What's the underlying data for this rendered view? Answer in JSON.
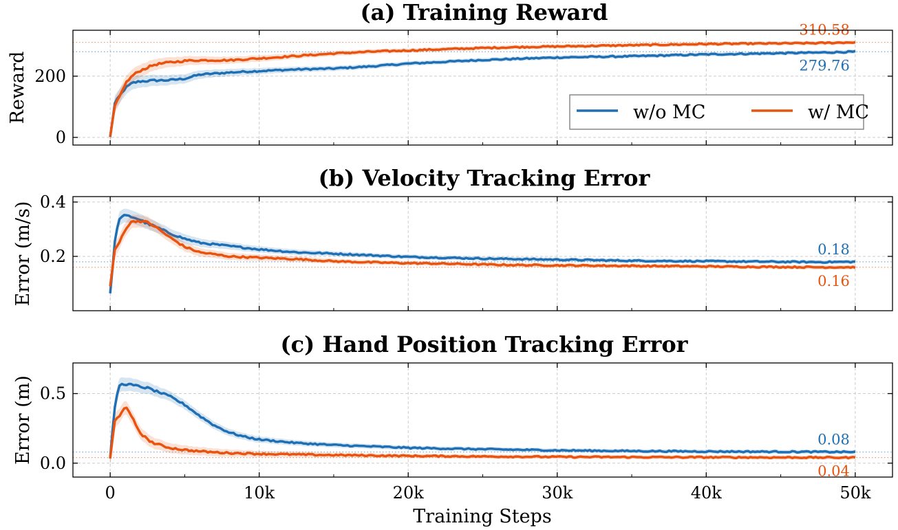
{
  "figure": {
    "xlabel": "Training Steps",
    "x_ticks": [
      0,
      10000,
      20000,
      30000,
      40000,
      50000
    ],
    "x_tick_labels": [
      "0",
      "10k",
      "20k",
      "30k",
      "40k",
      "50k"
    ],
    "legend": {
      "placement": "lower-right of panel (a)",
      "entries": [
        "w/o MC",
        "w/ MC"
      ]
    },
    "colors": {
      "wo_mc": "#1f6fb4",
      "w_mc": "#e8530f"
    }
  },
  "chart_data": [
    {
      "type": "line",
      "title": "(a) Training Reward",
      "ylabel": "Reward",
      "xlim": [
        -2500,
        52500
      ],
      "ylim": [
        -25,
        350
      ],
      "y_ticks": [
        0,
        200
      ],
      "y_tick_labels": [
        "0",
        "200"
      ],
      "grid": true,
      "x": [
        0,
        300,
        700,
        1000,
        1500,
        2000,
        3000,
        4000,
        5000,
        6000,
        8000,
        10000,
        12500,
        15000,
        17500,
        20000,
        22500,
        25000,
        27500,
        30000,
        32500,
        35000,
        37500,
        40000,
        42500,
        45000,
        47500,
        50000
      ],
      "series": [
        {
          "name": "w/o MC",
          "values": [
            0,
            110,
            140,
            160,
            178,
            183,
            186,
            187,
            192,
            205,
            212,
            217,
            222,
            225,
            232,
            241,
            247,
            253,
            257,
            261,
            263,
            265,
            268,
            271,
            273,
            275,
            277,
            279.76
          ],
          "final_label": "279.76"
        },
        {
          "name": "w/ MC",
          "values": [
            0,
            100,
            140,
            175,
            202,
            218,
            238,
            245,
            250,
            252,
            252,
            258,
            266,
            274,
            280,
            284,
            288,
            292,
            295,
            297,
            299,
            301,
            303,
            305,
            306,
            307,
            308,
            310.58
          ],
          "final_label": "310.58"
        }
      ]
    },
    {
      "type": "line",
      "title": "(b) Velocity Tracking Error",
      "ylabel": "Error (m/s)",
      "xlim": [
        -2500,
        52500
      ],
      "ylim": [
        0,
        0.42
      ],
      "y_ticks": [
        0.2,
        0.4
      ],
      "y_tick_labels": [
        "0.2",
        "0.4"
      ],
      "grid": true,
      "x": [
        0,
        300,
        600,
        1000,
        1500,
        2000,
        2500,
        3000,
        4000,
        5000,
        6000,
        8000,
        10000,
        12500,
        15000,
        17500,
        20000,
        22500,
        25000,
        27500,
        30000,
        32500,
        35000,
        37500,
        40000,
        42500,
        45000,
        47500,
        50000
      ],
      "series": [
        {
          "name": "w/o MC",
          "values": [
            0.06,
            0.25,
            0.34,
            0.35,
            0.345,
            0.335,
            0.32,
            0.31,
            0.285,
            0.265,
            0.25,
            0.238,
            0.226,
            0.215,
            0.21,
            0.204,
            0.198,
            0.195,
            0.192,
            0.19,
            0.188,
            0.186,
            0.184,
            0.183,
            0.182,
            0.181,
            0.18,
            0.179,
            0.18
          ],
          "final_label": "0.18"
        },
        {
          "name": "w/ MC",
          "values": [
            0.09,
            0.22,
            0.25,
            0.3,
            0.33,
            0.33,
            0.325,
            0.31,
            0.27,
            0.235,
            0.215,
            0.2,
            0.195,
            0.19,
            0.182,
            0.178,
            0.175,
            0.173,
            0.17,
            0.168,
            0.167,
            0.166,
            0.165,
            0.164,
            0.163,
            0.162,
            0.161,
            0.16,
            0.16
          ],
          "final_label": "0.16"
        }
      ]
    },
    {
      "type": "line",
      "title": "(c) Hand Position Tracking Error",
      "ylabel": "Error (m)",
      "xlim": [
        -2500,
        52500
      ],
      "ylim": [
        -0.1,
        0.72
      ],
      "y_ticks": [
        0,
        0.5
      ],
      "y_tick_labels": [
        "0.0",
        "0.5"
      ],
      "grid": true,
      "x": [
        0,
        300,
        600,
        1000,
        1500,
        2000,
        2500,
        3000,
        4000,
        5000,
        6000,
        7000,
        8000,
        9000,
        10000,
        12500,
        15000,
        17500,
        20000,
        25000,
        30000,
        35000,
        40000,
        45000,
        50000
      ],
      "series": [
        {
          "name": "w/o MC",
          "values": [
            0.03,
            0.4,
            0.56,
            0.57,
            0.56,
            0.55,
            0.54,
            0.52,
            0.48,
            0.42,
            0.34,
            0.27,
            0.22,
            0.19,
            0.17,
            0.145,
            0.13,
            0.12,
            0.11,
            0.1,
            0.092,
            0.087,
            0.084,
            0.082,
            0.08
          ],
          "final_label": "0.08"
        },
        {
          "name": "w/ MC",
          "values": [
            0.03,
            0.3,
            0.34,
            0.41,
            0.32,
            0.22,
            0.17,
            0.14,
            0.11,
            0.095,
            0.085,
            0.078,
            0.073,
            0.07,
            0.067,
            0.062,
            0.058,
            0.055,
            0.052,
            0.048,
            0.045,
            0.043,
            0.042,
            0.041,
            0.04
          ],
          "final_label": "0.04"
        }
      ]
    }
  ]
}
